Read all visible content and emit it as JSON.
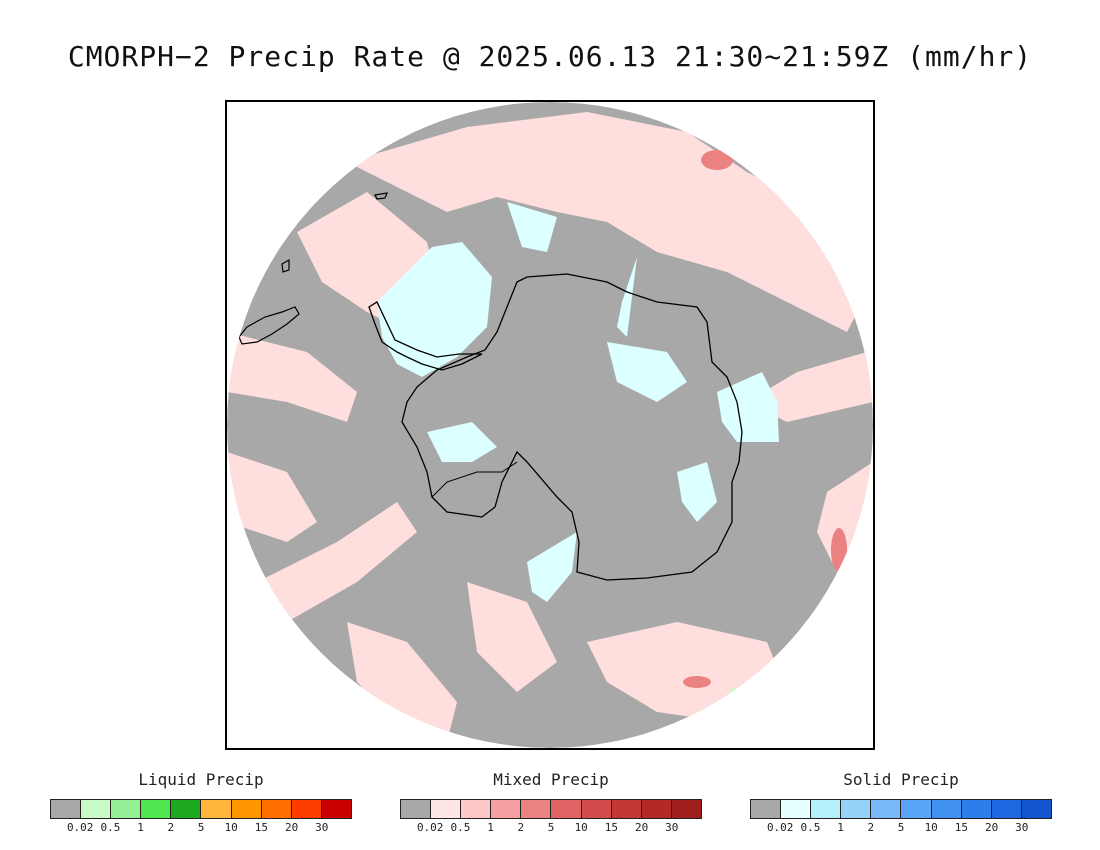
{
  "title": "CMORPH−2 Precip Rate @ 2025.06.13 21:30~21:59Z (mm/hr)",
  "colors": {
    "ocean_no_precip": "#a8a8a8",
    "mixed_light": "#ffdede",
    "snow_light": "#dcffff",
    "coastline": "#000000",
    "frame": "#000000"
  },
  "legends": [
    {
      "id": "liquid",
      "title": "Liquid Precip",
      "colors": [
        "#a8a8a8",
        "#c8fac8",
        "#96f096",
        "#50e650",
        "#1eaa1e",
        "#ffb43c",
        "#ff9600",
        "#ff6e00",
        "#ff3c00",
        "#c80000"
      ],
      "ticks": [
        "0.02",
        "0.5",
        "1",
        "2",
        "5",
        "10",
        "15",
        "20",
        "30"
      ]
    },
    {
      "id": "mixed",
      "title": "Mixed Precip",
      "colors": [
        "#a8a8a8",
        "#ffe6e6",
        "#ffc8c8",
        "#f5a0a0",
        "#eb8282",
        "#e16464",
        "#d24b4b",
        "#c33737",
        "#b42828",
        "#a01e1e"
      ],
      "ticks": [
        "0.02",
        "0.5",
        "1",
        "2",
        "5",
        "10",
        "15",
        "20",
        "30"
      ]
    },
    {
      "id": "solid",
      "title": "Solid Precip",
      "colors": [
        "#a8a8a8",
        "#e6ffff",
        "#b4f0fa",
        "#96d2fa",
        "#78b9fa",
        "#5aa5f5",
        "#4191f0",
        "#2d7deb",
        "#1e69e1",
        "#1455cd"
      ],
      "ticks": [
        "0.02",
        "0.5",
        "1",
        "2",
        "5",
        "10",
        "15",
        "20",
        "30"
      ]
    }
  ]
}
